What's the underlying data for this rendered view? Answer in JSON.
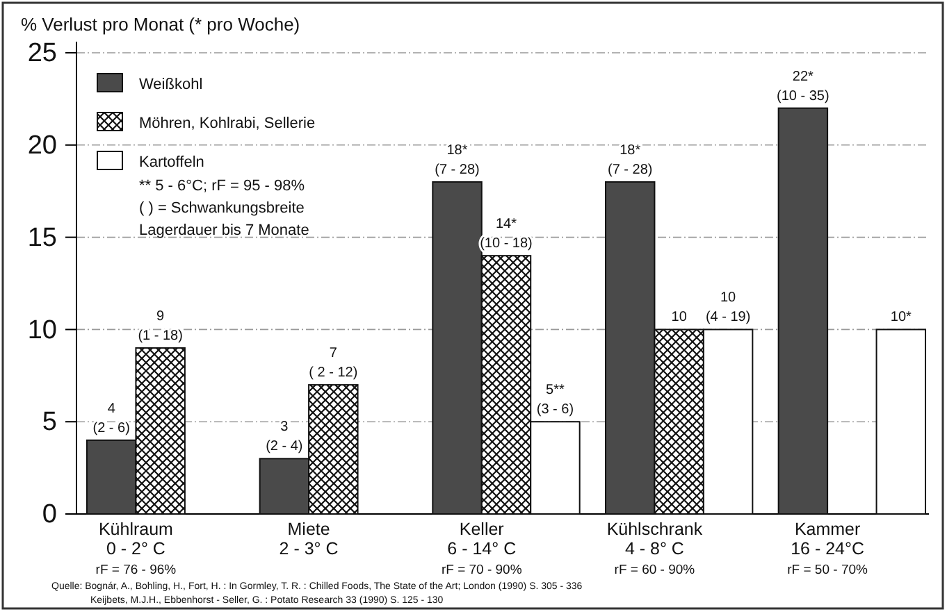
{
  "chart_data": {
    "type": "bar",
    "ylabel": "% Verlust pro Monat (* pro Woche)",
    "categories": [
      "Kühlraum\n0 - 2° C\nrF = 76 - 96%",
      "Miete\n2 - 3° C",
      "Keller\n6 - 14° C\nrF = 70 - 90%",
      "Kühlschrank\n4 - 8° C\nrF = 60 - 90%",
      "Kammer\n16 - 24°C\nrF =  50 - 70%"
    ],
    "series": [
      {
        "name": "Weißkohl",
        "color": "#4a4a4a",
        "values": [
          4,
          3,
          18,
          18,
          22
        ],
        "value_labels": [
          "4\n(2 - 6)",
          "3\n(2 - 4)",
          "18*\n(7 - 28)",
          "18*\n(7 - 28)",
          "22*\n(10 - 35)"
        ]
      },
      {
        "name": "Möhren, Kohlrabi, Sellerie",
        "color": "#111111",
        "values": [
          9,
          7,
          14,
          10,
          null
        ],
        "value_labels": [
          "9\n(1 - 18)",
          "7\n( 2 - 12)",
          "14*\n(10 - 18)",
          "10",
          null
        ]
      },
      {
        "name": "Kartoffeln",
        "color": "#ffffff",
        "values": [
          null,
          null,
          5,
          10,
          10
        ],
        "value_labels": [
          null,
          null,
          "5**\n(3 - 6)",
          "10\n(4 - 19)",
          "10*"
        ]
      }
    ],
    "ylim": [
      0,
      25
    ],
    "yticks": [
      0,
      5,
      10,
      15,
      20,
      25
    ],
    "grid": "y",
    "legend": "top left",
    "annotations": [
      "** 5 - 6°C; rF = 95 - 98%",
      "( ) = Schwankungsbreite",
      "Lagerdauer bis 7 Monate",
      "Quelle: Bognár, A., Bohling, H., Fort, H. :  In  Gormley, T. R. : Chilled Foods, The State of the Art;  London (1990)  S. 305 - 336",
      "Keijbets, M.J.H., Ebbenhorst - Seller, G. : Potato Research 33 (1990)  S. 125 - 130"
    ]
  }
}
